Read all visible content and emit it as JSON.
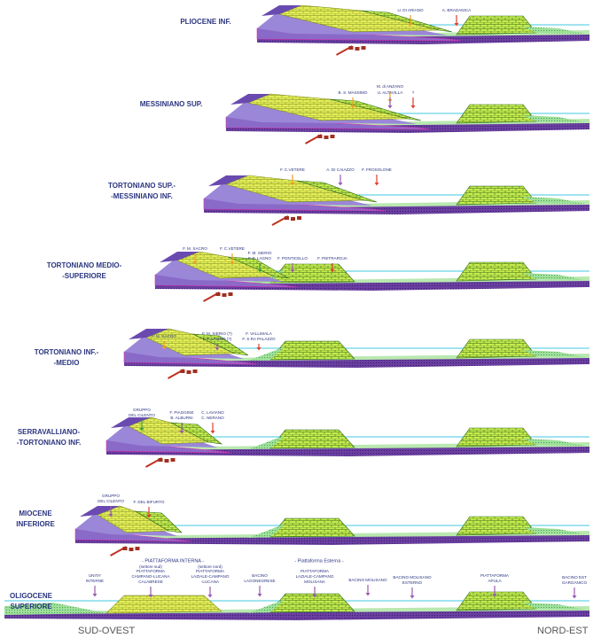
{
  "panels": [
    {
      "stage": [
        "PLIOCENE INF."
      ],
      "labels": [
        [
          "U. DI ARIANO"
        ],
        [
          "A. BRADANICA"
        ]
      ]
    },
    {
      "stage": [
        "MESSINIANO SUP."
      ],
      "labels": [
        [
          "M. di ANZANO"
        ],
        [
          "B. S. MASSIMO"
        ],
        [
          "U. ALTAVILLA"
        ],
        [
          "?"
        ]
      ]
    },
    {
      "stage": [
        "TORTONIANO SUP.-",
        "-MESSINIANO INF."
      ],
      "labels": [
        [
          "F. C.VETERE"
        ],
        [
          "A. DI CAIAZZO"
        ],
        [
          "F. FROSOLONE"
        ]
      ]
    },
    {
      "stage": [
        "TORTONIANO MEDIO-",
        "-SUPERIORE"
      ],
      "labels": [
        [
          "F. M. SACRO"
        ],
        [
          "F. C.VETERE"
        ],
        [
          "F. M. SIERIO",
          "F. F. LAGNO"
        ],
        [
          "F. PONTICELLO"
        ],
        [
          "F. PIETRAROJA"
        ]
      ]
    },
    {
      "stage": [
        "TORTONIANO INF.-",
        "-MEDIO"
      ],
      "labels": [
        [
          "F. M. SACRO"
        ],
        [
          "F. M. SIERIO (?)",
          "F. F. LAGNO (?)"
        ],
        [
          "F. VALLIMALA",
          "F. S.RA PALAZZO"
        ]
      ]
    },
    {
      "stage": [
        "SERRAVALLIANO-",
        "-TORTONIANO INF."
      ],
      "labels": [
        [
          "GRUPPO",
          "DEL CILENTO"
        ],
        [
          "F. PIAGGINE",
          "B. ALBURNI"
        ],
        [
          "C. LAVIANO",
          "C. NERANO"
        ]
      ]
    },
    {
      "stage": [
        "MIOCENE",
        "INFERIORE"
      ],
      "labels": [
        [
          "GRUPPO",
          "DEL CILENTO"
        ],
        [
          "F. DEL BIFURTO"
        ]
      ]
    },
    {
      "stage": [
        "OLIGOCENE",
        "SUPERIORE"
      ],
      "headers": [
        "- PIATTAFORMA  INTERNA -",
        "(settore sud)",
        "(settore nord)",
        "- Piattaforma Esterna -"
      ],
      "labels": [
        [
          "UNITA'",
          "INTERNE"
        ],
        [
          "PIATTAFORMA",
          "CAMPANO-LUCANA",
          "CALABRESE"
        ],
        [
          "PIATTAFORMA",
          "LAZIALE-CAMPANO",
          "-LUCANA"
        ],
        [
          "BACINO",
          "LAGONEGRESE"
        ],
        [
          "PIATTAFORMA",
          "LAZIALE-CAMPANO",
          "MOLISANA"
        ],
        [
          "BACINO MOLISANO"
        ],
        [
          "BACINO MOLISANO",
          "ESTERNO"
        ],
        [
          "PIATTAFORMA",
          "APULA"
        ],
        [
          "BACINO EST",
          "GARGANICO"
        ]
      ]
    }
  ],
  "footer": {
    "left": "SUD-OVEST",
    "right": "NORD-EST"
  }
}
